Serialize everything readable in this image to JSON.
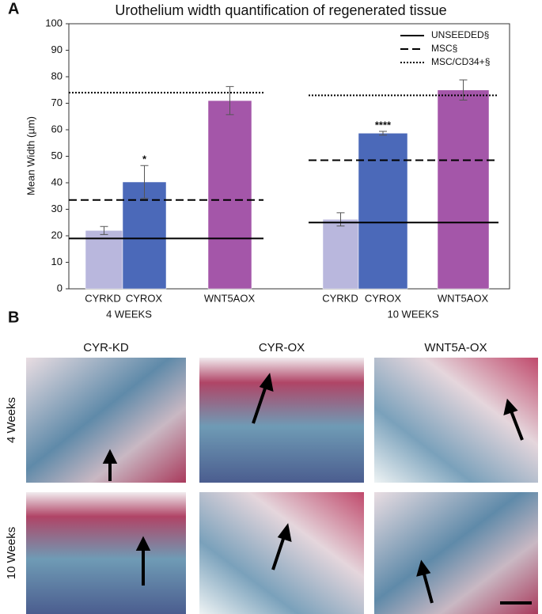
{
  "panel_labels": [
    "A",
    "B"
  ],
  "chart_data": {
    "type": "bar",
    "title": "Urothelium width quantification of regenerated tissue",
    "y_label": "Mean Width (µm)",
    "ylim": [
      0,
      100
    ],
    "yticks": [
      0,
      10,
      20,
      30,
      40,
      50,
      60,
      70,
      80,
      90,
      100
    ],
    "groups": [
      "4 WEEKS",
      "10 WEEKS"
    ],
    "categories": [
      "CYRKD",
      "CYROX",
      "WNT5AOX",
      "CYRKD",
      "CYROX",
      "WNT5AOX"
    ],
    "values": [
      22,
      40.3,
      71,
      26.2,
      58.7,
      75
    ],
    "errors": [
      1.5,
      6.2,
      5.3,
      2.5,
      0.7,
      3.8
    ],
    "colors": [
      "#b9b7dd",
      "#4b69b9",
      "#a456a9",
      "#b9b7dd",
      "#4b69b9",
      "#a456a9"
    ],
    "significance": [
      null,
      "*",
      null,
      null,
      "****",
      null
    ],
    "reference_lines": [
      {
        "name": "UNSEEDED§",
        "style": "solid",
        "values": [
          19,
          25
        ]
      },
      {
        "name": "MSC§",
        "style": "dashed",
        "values": [
          33.5,
          48.5
        ]
      },
      {
        "name": "MSC/CD34+§",
        "style": "dotted",
        "values": [
          74,
          73
        ]
      }
    ]
  },
  "histology": {
    "columns": [
      "CYR-KD",
      "CYR-OX",
      "WNT5A-OX"
    ],
    "rows": [
      "4 Weeks",
      "10 Weeks"
    ]
  }
}
